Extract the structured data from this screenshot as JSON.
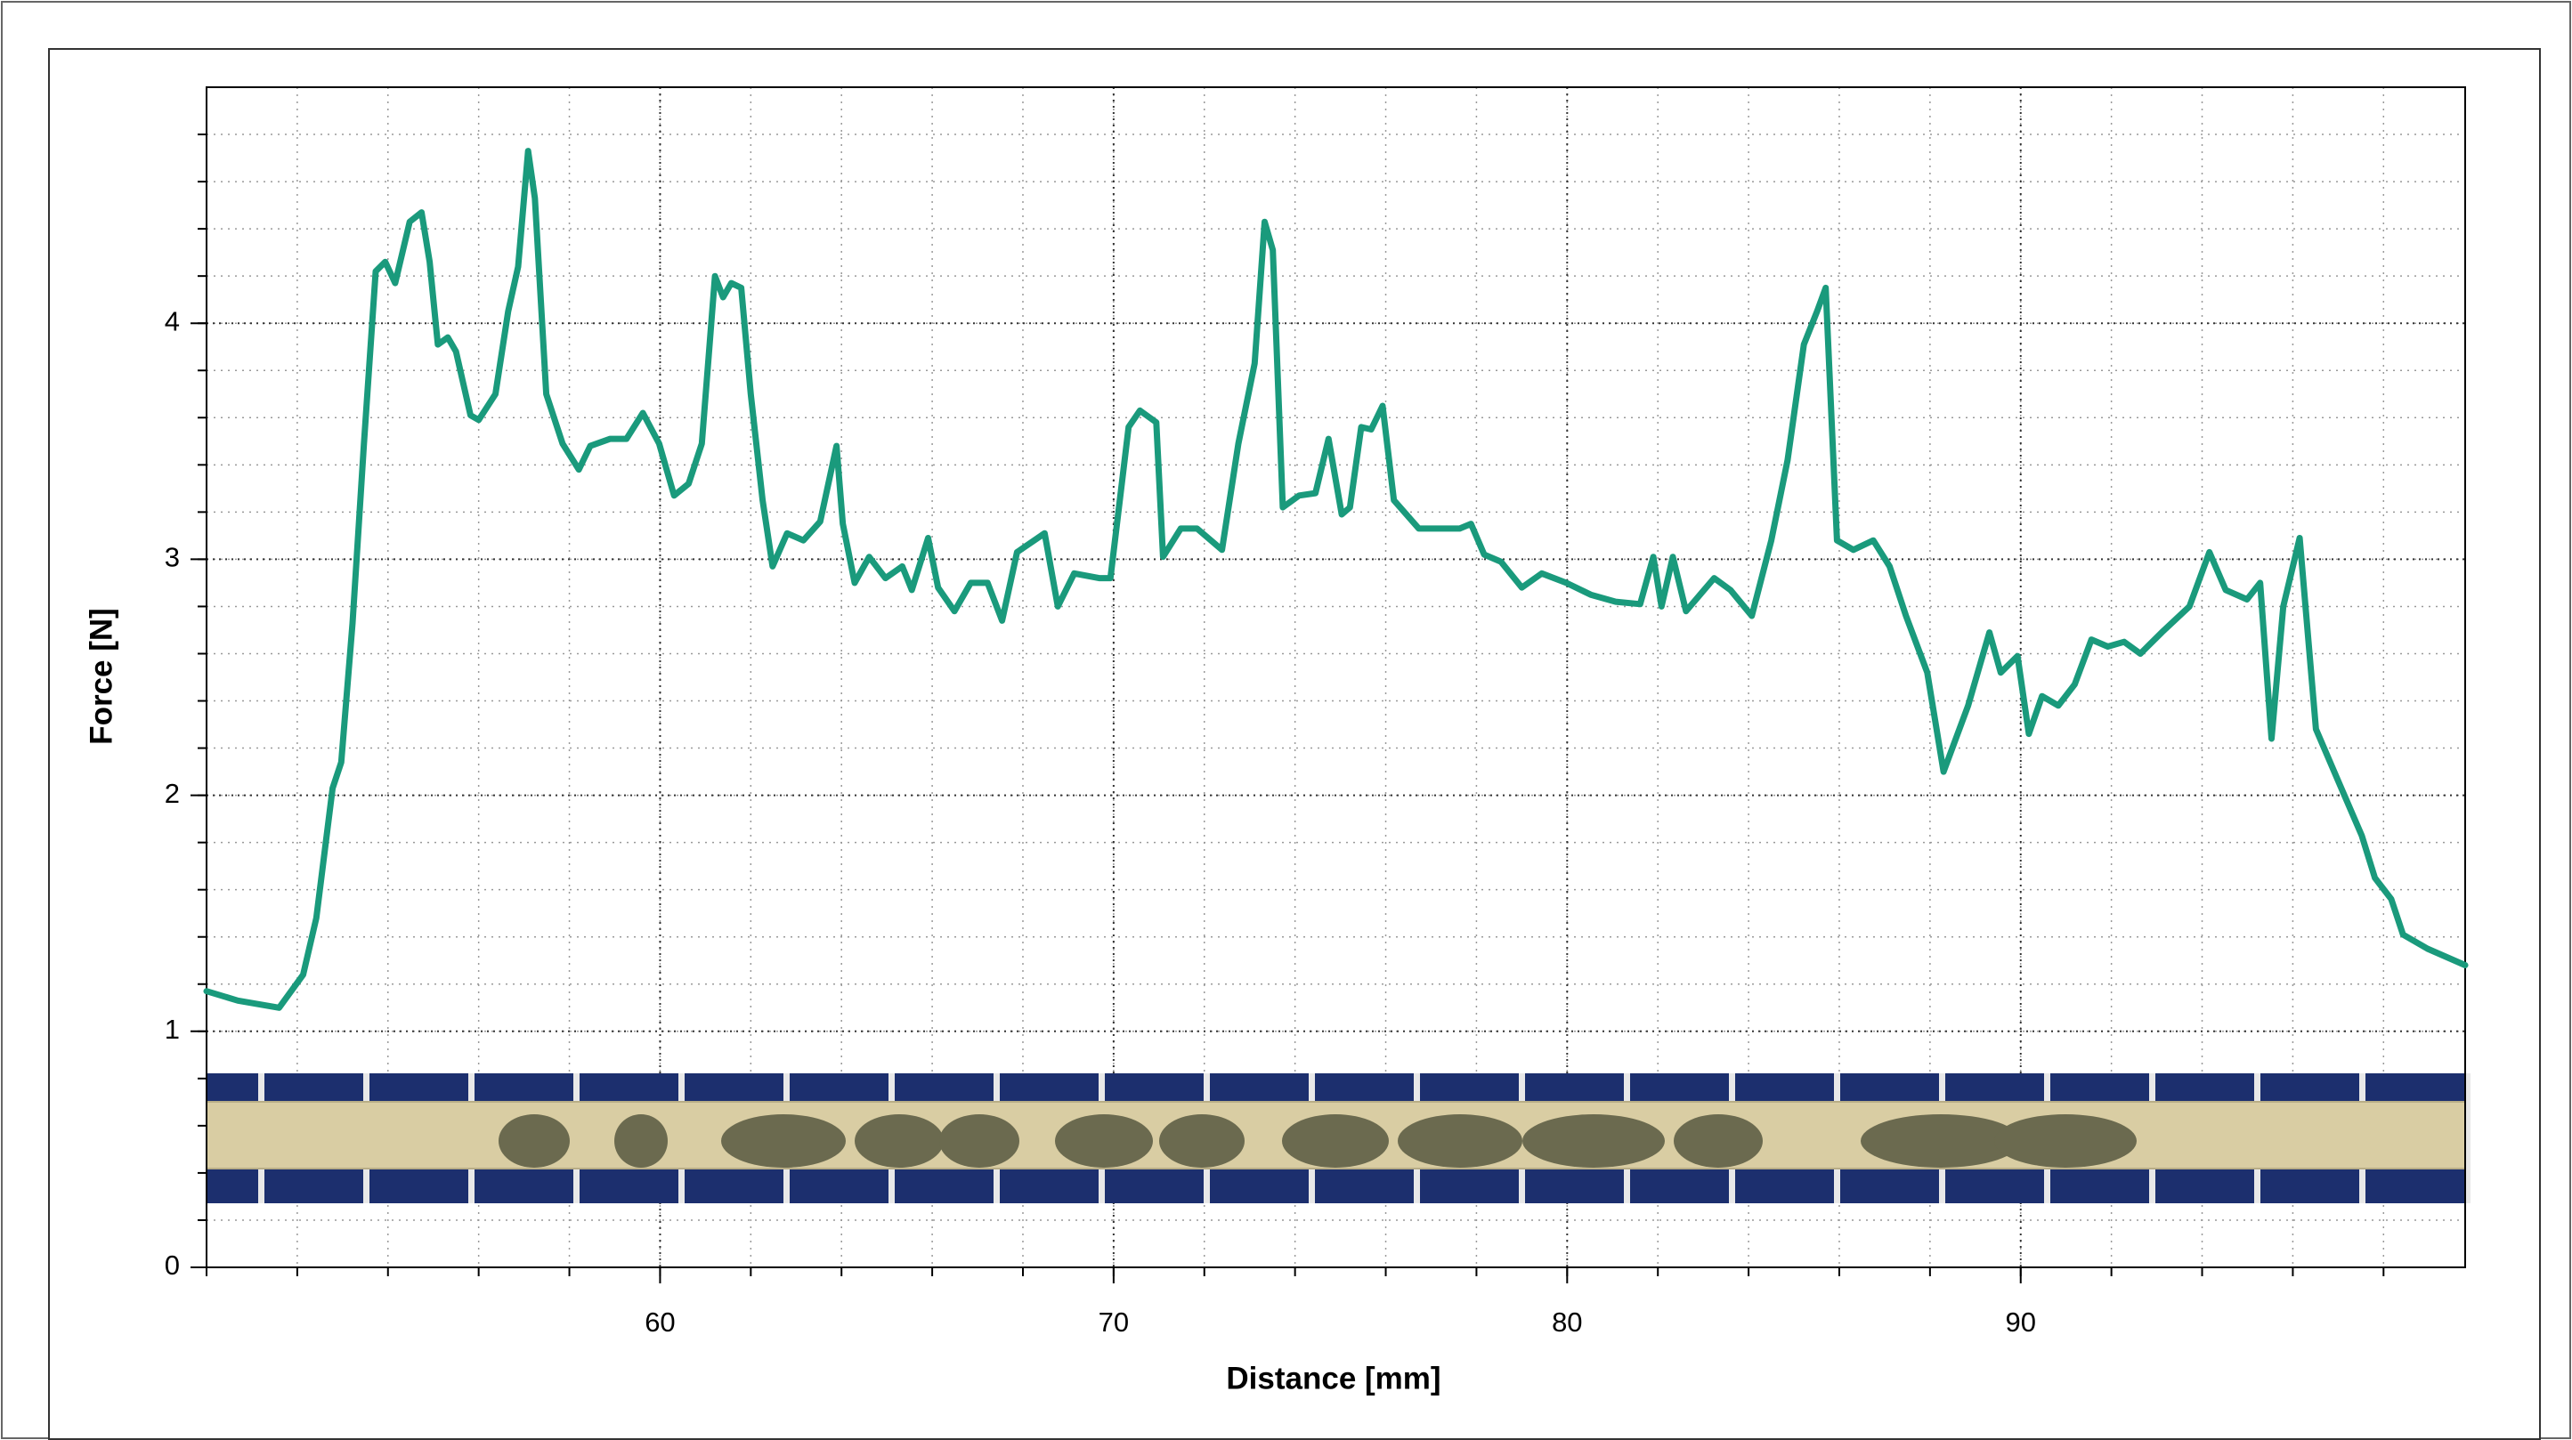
{
  "chart_data": {
    "type": "line",
    "x_label": "Distance [mm]",
    "y_label": "Force [N]",
    "x": [
      50.0,
      50.69,
      51.6,
      52.13,
      52.42,
      52.78,
      52.97,
      53.22,
      53.47,
      53.73,
      53.94,
      54.16,
      54.48,
      54.74,
      54.92,
      55.1,
      55.32,
      55.5,
      55.82,
      56.0,
      56.37,
      56.65,
      56.87,
      57.09,
      57.24,
      57.49,
      57.85,
      58.21,
      58.46,
      58.9,
      59.26,
      59.62,
      59.98,
      60.31,
      60.63,
      60.92,
      61.21,
      61.39,
      61.57,
      61.79,
      62.0,
      62.26,
      62.48,
      62.8,
      63.16,
      63.53,
      63.89,
      64.03,
      64.29,
      64.61,
      64.97,
      65.34,
      65.55,
      65.91,
      66.13,
      66.49,
      66.85,
      67.22,
      67.54,
      67.87,
      68.48,
      68.77,
      69.13,
      69.68,
      69.93,
      70.33,
      70.58,
      70.94,
      71.09,
      71.48,
      71.84,
      72.39,
      72.75,
      73.11,
      73.33,
      73.51,
      73.73,
      74.09,
      74.45,
      74.74,
      75.03,
      75.21,
      75.46,
      75.68,
      75.93,
      76.18,
      76.73,
      77.63,
      77.88,
      78.17,
      78.54,
      79.0,
      79.44,
      79.98,
      80.52,
      81.07,
      81.61,
      81.9,
      82.08,
      82.33,
      82.62,
      83.24,
      83.6,
      84.07,
      84.5,
      84.86,
      85.22,
      85.51,
      85.7,
      85.95,
      86.31,
      86.75,
      87.11,
      87.47,
      87.94,
      88.3,
      88.84,
      89.31,
      89.56,
      89.93,
      90.18,
      90.47,
      90.83,
      91.19,
      91.56,
      91.92,
      92.28,
      92.64,
      93.11,
      93.72,
      94.16,
      94.52,
      94.99,
      95.28,
      95.53,
      95.79,
      96.15,
      96.51,
      96.98,
      97.52,
      97.81,
      98.17,
      98.43,
      98.97,
      99.8
    ],
    "values": [
      1.17,
      1.13,
      1.1,
      1.24,
      1.48,
      2.03,
      2.14,
      2.73,
      3.49,
      4.22,
      4.26,
      4.17,
      4.43,
      4.47,
      4.26,
      3.91,
      3.94,
      3.88,
      3.61,
      3.59,
      3.7,
      4.05,
      4.24,
      4.73,
      4.53,
      3.7,
      3.49,
      3.38,
      3.48,
      3.51,
      3.51,
      3.62,
      3.49,
      3.27,
      3.32,
      3.49,
      4.2,
      4.11,
      4.17,
      4.15,
      3.7,
      3.25,
      2.97,
      3.11,
      3.08,
      3.16,
      3.48,
      3.15,
      2.9,
      3.01,
      2.92,
      2.97,
      2.87,
      3.09,
      2.88,
      2.78,
      2.9,
      2.9,
      2.74,
      3.03,
      3.11,
      2.8,
      2.94,
      2.92,
      2.92,
      3.56,
      3.63,
      3.58,
      3.01,
      3.13,
      3.13,
      3.04,
      3.49,
      3.83,
      4.43,
      4.31,
      3.22,
      3.27,
      3.28,
      3.51,
      3.19,
      3.22,
      3.56,
      3.55,
      3.65,
      3.25,
      3.13,
      3.13,
      3.15,
      3.02,
      2.99,
      2.88,
      2.94,
      2.9,
      2.85,
      2.82,
      2.81,
      3.01,
      2.8,
      3.01,
      2.78,
      2.92,
      2.87,
      2.76,
      3.08,
      3.42,
      3.91,
      4.05,
      4.15,
      3.08,
      3.04,
      3.08,
      2.97,
      2.76,
      2.52,
      2.1,
      2.38,
      2.69,
      2.52,
      2.59,
      2.26,
      2.42,
      2.38,
      2.47,
      2.66,
      2.63,
      2.65,
      2.6,
      2.69,
      2.8,
      3.03,
      2.87,
      2.83,
      2.9,
      2.24,
      2.8,
      3.09,
      2.28,
      2.07,
      1.83,
      1.65,
      1.56,
      1.41,
      1.35,
      1.28
    ],
    "color": "#1a9a7c",
    "xlim": [
      50,
      99.8
    ],
    "xticks": [
      60,
      70,
      80,
      90
    ],
    "ylim": [
      0,
      5
    ],
    "yticks": [
      0,
      1,
      2,
      3,
      4
    ],
    "grid": true
  }
}
